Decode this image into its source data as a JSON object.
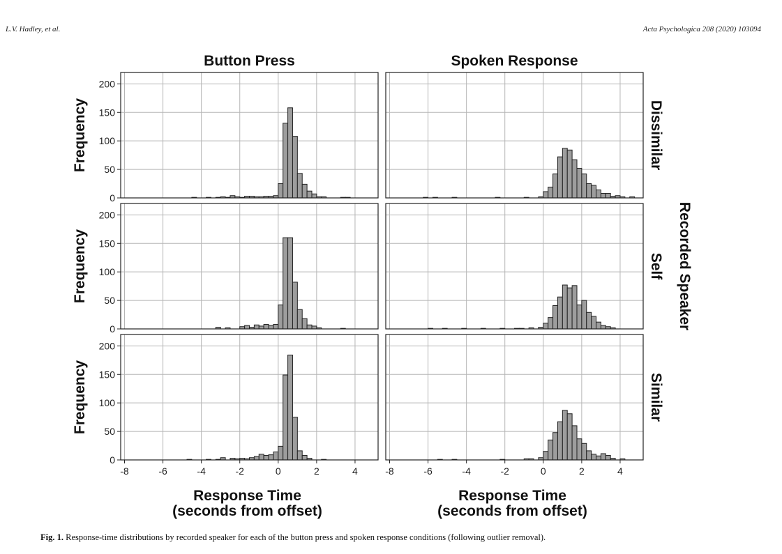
{
  "header": {
    "left": "L.V. Hadley, et al.",
    "right": "Acta Psychologica 208 (2020) 103094"
  },
  "caption": {
    "label": "Fig. 1.",
    "text": " Response-time distributions by recorded speaker for each of the button press and spoken response conditions (following outlier removal)."
  },
  "chart_data": {
    "type": "bar",
    "subtype": "faceted histogram",
    "column_titles": [
      "Button Press",
      "Spoken Response"
    ],
    "row_titles": [
      "Dissimilar",
      "Self",
      "Similar"
    ],
    "row_group_label": "Recorded Speaker",
    "ylabel": "Frequency",
    "xlabel_line1": "Response Time",
    "xlabel_line2": "(seconds from offset)",
    "xlim": [
      -8.2,
      5.2
    ],
    "ylim": [
      0,
      220
    ],
    "xticks": [
      -8,
      -6,
      -4,
      -2,
      0,
      2,
      4
    ],
    "yticks": [
      0,
      50,
      100,
      150,
      200
    ],
    "grid": true,
    "bin_width": 0.25,
    "panels": [
      {
        "row": "Dissimilar",
        "column": "Button Press",
        "bins": [
          [
            -4.5,
            1
          ],
          [
            -3.75,
            1
          ],
          [
            -3.25,
            1
          ],
          [
            -3,
            2
          ],
          [
            -2.75,
            1
          ],
          [
            -2.5,
            4
          ],
          [
            -2.25,
            2
          ],
          [
            -2,
            1
          ],
          [
            -1.75,
            3
          ],
          [
            -1.5,
            3
          ],
          [
            -1.25,
            2
          ],
          [
            -1,
            2
          ],
          [
            -0.75,
            3
          ],
          [
            -0.5,
            3
          ],
          [
            -0.25,
            4
          ],
          [
            0,
            25
          ],
          [
            0.25,
            131
          ],
          [
            0.5,
            158
          ],
          [
            0.75,
            108
          ],
          [
            1,
            43
          ],
          [
            1.25,
            24
          ],
          [
            1.5,
            12
          ],
          [
            1.75,
            7
          ],
          [
            2,
            2
          ],
          [
            2.25,
            2
          ],
          [
            3.25,
            1
          ],
          [
            3.5,
            1
          ]
        ]
      },
      {
        "row": "Dissimilar",
        "column": "Spoken Response",
        "bins": [
          [
            -6.25,
            1
          ],
          [
            -5.75,
            1
          ],
          [
            -4.75,
            1
          ],
          [
            -2.5,
            1
          ],
          [
            -1,
            1
          ],
          [
            -0.25,
            2
          ],
          [
            0,
            11
          ],
          [
            0.25,
            19
          ],
          [
            0.5,
            42
          ],
          [
            0.75,
            72
          ],
          [
            1,
            87
          ],
          [
            1.25,
            84
          ],
          [
            1.5,
            67
          ],
          [
            1.75,
            52
          ],
          [
            2,
            42
          ],
          [
            2.25,
            25
          ],
          [
            2.5,
            22
          ],
          [
            2.75,
            14
          ],
          [
            3,
            8
          ],
          [
            3.25,
            8
          ],
          [
            3.5,
            3
          ],
          [
            3.75,
            4
          ],
          [
            4,
            2
          ],
          [
            4.5,
            2
          ]
        ]
      },
      {
        "row": "Self",
        "column": "Button Press",
        "bins": [
          [
            -3.25,
            3
          ],
          [
            -2.75,
            2
          ],
          [
            -2,
            4
          ],
          [
            -1.75,
            6
          ],
          [
            -1.5,
            3
          ],
          [
            -1.25,
            7
          ],
          [
            -1,
            5
          ],
          [
            -0.75,
            8
          ],
          [
            -0.5,
            6
          ],
          [
            -0.25,
            8
          ],
          [
            0,
            42
          ],
          [
            0.25,
            160
          ],
          [
            0.5,
            160
          ],
          [
            0.75,
            82
          ],
          [
            1,
            34
          ],
          [
            1.25,
            18
          ],
          [
            1.5,
            7
          ],
          [
            1.75,
            5
          ],
          [
            2,
            2
          ],
          [
            3.25,
            1
          ]
        ]
      },
      {
        "row": "Self",
        "column": "Spoken Response",
        "bins": [
          [
            -6,
            1
          ],
          [
            -5.25,
            1
          ],
          [
            -4.25,
            1
          ],
          [
            -3.25,
            1
          ],
          [
            -2.25,
            1
          ],
          [
            -1.5,
            1
          ],
          [
            -1.25,
            1
          ],
          [
            -0.75,
            2
          ],
          [
            -0.25,
            3
          ],
          [
            0,
            10
          ],
          [
            0.25,
            20
          ],
          [
            0.5,
            41
          ],
          [
            0.75,
            56
          ],
          [
            1,
            77
          ],
          [
            1.25,
            72
          ],
          [
            1.5,
            76
          ],
          [
            1.75,
            42
          ],
          [
            2,
            50
          ],
          [
            2.25,
            29
          ],
          [
            2.5,
            22
          ],
          [
            2.75,
            12
          ],
          [
            3,
            6
          ],
          [
            3.25,
            4
          ],
          [
            3.5,
            2
          ]
        ]
      },
      {
        "row": "Similar",
        "column": "Button Press",
        "bins": [
          [
            -4.75,
            1
          ],
          [
            -3.75,
            1
          ],
          [
            -3.25,
            1
          ],
          [
            -3,
            4
          ],
          [
            -2.5,
            3
          ],
          [
            -2.25,
            2
          ],
          [
            -2,
            3
          ],
          [
            -1.75,
            2
          ],
          [
            -1.5,
            4
          ],
          [
            -1.25,
            6
          ],
          [
            -1,
            10
          ],
          [
            -0.75,
            8
          ],
          [
            -0.5,
            9
          ],
          [
            -0.25,
            14
          ],
          [
            0,
            24
          ],
          [
            0.25,
            149
          ],
          [
            0.5,
            184
          ],
          [
            0.75,
            75
          ],
          [
            1,
            16
          ],
          [
            1.25,
            8
          ],
          [
            1.5,
            3
          ],
          [
            2.25,
            1
          ]
        ]
      },
      {
        "row": "Similar",
        "column": "Spoken Response",
        "bins": [
          [
            -5.5,
            1
          ],
          [
            -4.75,
            1
          ],
          [
            -2.25,
            1
          ],
          [
            -1,
            2
          ],
          [
            -0.75,
            2
          ],
          [
            -0.25,
            4
          ],
          [
            0,
            15
          ],
          [
            0.25,
            35
          ],
          [
            0.5,
            48
          ],
          [
            0.75,
            67
          ],
          [
            1,
            87
          ],
          [
            1.25,
            81
          ],
          [
            1.5,
            60
          ],
          [
            1.75,
            37
          ],
          [
            2,
            29
          ],
          [
            2.25,
            16
          ],
          [
            2.5,
            10
          ],
          [
            2.75,
            7
          ],
          [
            3,
            11
          ],
          [
            3.25,
            8
          ],
          [
            3.5,
            3
          ],
          [
            4,
            2
          ]
        ]
      }
    ]
  }
}
